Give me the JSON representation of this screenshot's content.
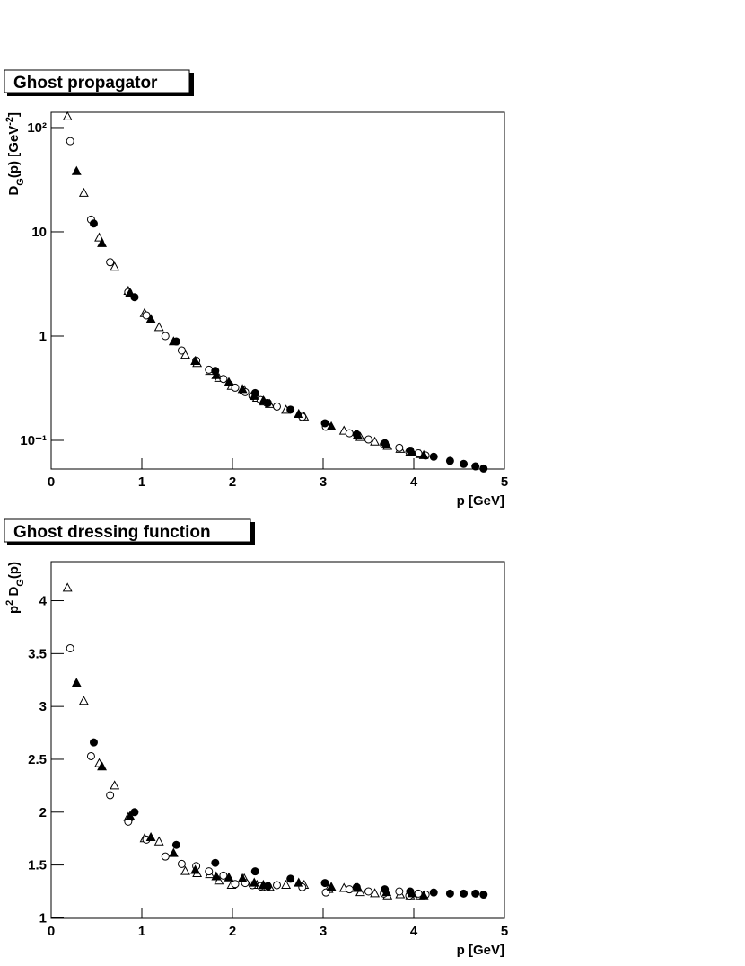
{
  "chart_data": [
    {
      "type": "scatter",
      "title": "Ghost propagator",
      "xlabel": "p [GeV]",
      "ylabel": [
        "D",
        "G",
        "(p) [GeV",
        "-2",
        "]"
      ],
      "xlim": [
        0,
        5
      ],
      "xticks": [
        0,
        1,
        2,
        3,
        4,
        5
      ],
      "ylim": [
        0.053,
        140
      ],
      "log_y": true,
      "yticks": [
        {
          "value": 0.1,
          "label": "10⁻¹"
        },
        1,
        10,
        {
          "value": 100,
          "label": "10²"
        }
      ],
      "series": [
        {
          "marker": "triangle",
          "filled": false,
          "color": "#000000",
          "x": [
            0.18,
            0.36,
            0.53,
            0.7,
            0.85,
            1.03,
            1.19,
            1.48,
            1.61,
            1.75,
            1.85,
            1.99,
            2.13,
            2.27,
            2.35,
            2.41,
            2.59,
            2.79,
            3.06,
            3.23,
            3.41,
            3.57,
            3.71,
            3.85,
            3.96,
            4.07
          ],
          "values": [
            127,
            23.5,
            8.76,
            4.59,
            2.7,
            1.65,
            1.21,
            0.657,
            0.548,
            0.46,
            0.394,
            0.331,
            0.302,
            0.254,
            0.234,
            0.222,
            0.195,
            0.168,
            0.136,
            0.123,
            0.107,
            0.0965,
            0.0879,
            0.0823,
            0.0772,
            0.0731
          ]
        },
        {
          "marker": "circle",
          "filled": false,
          "color": "#000000",
          "x": [
            0.21,
            0.44,
            0.65,
            0.85,
            1.05,
            1.26,
            1.44,
            1.6,
            1.74,
            1.9,
            2.03,
            2.14,
            2.22,
            2.31,
            2.38,
            2.49,
            2.77,
            3.03,
            3.29,
            3.5,
            3.67,
            3.84,
            3.95,
            4.05,
            4.13
          ],
          "values": [
            74,
            13.1,
            5.11,
            2.64,
            1.58,
            1.0,
            0.728,
            0.582,
            0.476,
            0.388,
            0.32,
            0.29,
            0.266,
            0.244,
            0.228,
            0.211,
            0.168,
            0.135,
            0.117,
            0.102,
            0.0913,
            0.0848,
            0.0776,
            0.075,
            0.0715
          ]
        },
        {
          "marker": "circle",
          "filled": true,
          "color": "#000000",
          "x": [
            0.47,
            0.92,
            1.38,
            1.81,
            2.25,
            2.39,
            2.64,
            3.02,
            3.37,
            3.68,
            3.96,
            4.22,
            4.4,
            4.55,
            4.68,
            4.77
          ],
          "values": [
            12.0,
            2.36,
            0.887,
            0.464,
            0.284,
            0.228,
            0.197,
            0.146,
            0.114,
            0.0938,
            0.0797,
            0.0696,
            0.0635,
            0.0594,
            0.0562,
            0.0536
          ]
        },
        {
          "marker": "triangle",
          "filled": true,
          "color": "#000000",
          "x": [
            0.28,
            0.56,
            0.87,
            1.1,
            1.35,
            1.59,
            1.82,
            1.96,
            2.11,
            2.24,
            2.34,
            2.73,
            3.09,
            3.38,
            3.7,
            3.98,
            4.11
          ],
          "values": [
            38,
            7.75,
            2.59,
            1.45,
            0.883,
            0.574,
            0.42,
            0.359,
            0.308,
            0.265,
            0.239,
            0.178,
            0.135,
            0.112,
            0.0906,
            0.0777,
            0.0716
          ]
        }
      ]
    },
    {
      "type": "scatter",
      "title": "Ghost dressing function",
      "xlabel": "p [GeV]",
      "ylabel": [
        "p",
        "2",
        " D",
        "G",
        "(p)"
      ],
      "xlim": [
        0,
        5
      ],
      "xticks": [
        0,
        1,
        2,
        3,
        4,
        5
      ],
      "ylim": [
        0.995,
        4.37
      ],
      "log_y": false,
      "yticks": [
        1,
        1.5,
        2,
        2.5,
        3,
        3.5,
        4
      ],
      "series": [
        {
          "marker": "triangle",
          "filled": false,
          "color": "#000000",
          "x": [
            0.18,
            0.36,
            0.53,
            0.7,
            0.85,
            1.03,
            1.19,
            1.48,
            1.61,
            1.75,
            1.85,
            1.99,
            2.13,
            2.27,
            2.35,
            2.41,
            2.59,
            2.79,
            3.06,
            3.23,
            3.41,
            3.57,
            3.71,
            3.85,
            3.96,
            4.07
          ],
          "values": [
            4.12,
            3.05,
            2.46,
            2.25,
            1.95,
            1.75,
            1.72,
            1.44,
            1.42,
            1.41,
            1.35,
            1.31,
            1.37,
            1.31,
            1.29,
            1.29,
            1.31,
            1.31,
            1.27,
            1.28,
            1.24,
            1.23,
            1.21,
            1.22,
            1.21,
            1.21
          ]
        },
        {
          "marker": "circle",
          "filled": false,
          "color": "#000000",
          "x": [
            0.21,
            0.44,
            0.65,
            0.85,
            1.05,
            1.26,
            1.44,
            1.6,
            1.74,
            1.9,
            2.03,
            2.14,
            2.22,
            2.31,
            2.38,
            2.49,
            2.77,
            3.03,
            3.29,
            3.5,
            3.67,
            3.84,
            3.95,
            4.05,
            4.13
          ],
          "values": [
            3.55,
            2.53,
            2.16,
            1.91,
            1.74,
            1.58,
            1.51,
            1.49,
            1.44,
            1.4,
            1.32,
            1.33,
            1.31,
            1.3,
            1.29,
            1.31,
            1.29,
            1.24,
            1.27,
            1.25,
            1.23,
            1.25,
            1.21,
            1.23,
            1.22
          ]
        },
        {
          "marker": "circle",
          "filled": true,
          "color": "#000000",
          "x": [
            0.47,
            0.92,
            1.38,
            1.81,
            2.25,
            2.39,
            2.64,
            3.02,
            3.37,
            3.68,
            3.96,
            4.22,
            4.4,
            4.55,
            4.68,
            4.77
          ],
          "values": [
            2.66,
            2.0,
            1.69,
            1.52,
            1.44,
            1.3,
            1.37,
            1.33,
            1.29,
            1.27,
            1.25,
            1.24,
            1.23,
            1.23,
            1.23,
            1.22
          ]
        },
        {
          "marker": "triangle",
          "filled": true,
          "color": "#000000",
          "x": [
            0.28,
            0.56,
            0.87,
            1.1,
            1.35,
            1.59,
            1.82,
            1.96,
            2.11,
            2.24,
            2.34,
            2.73,
            3.09,
            3.38,
            3.7,
            3.98,
            4.11
          ],
          "values": [
            3.22,
            2.43,
            1.96,
            1.76,
            1.61,
            1.45,
            1.39,
            1.38,
            1.37,
            1.33,
            1.31,
            1.33,
            1.29,
            1.28,
            1.24,
            1.23,
            1.21
          ]
        }
      ]
    }
  ]
}
